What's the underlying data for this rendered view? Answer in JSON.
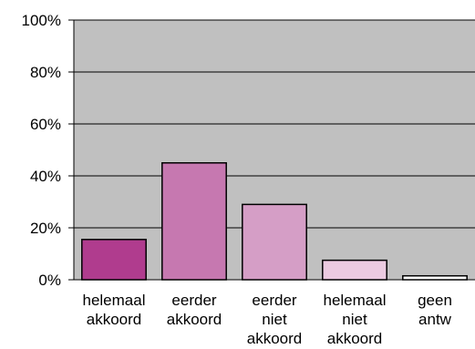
{
  "chart_data": {
    "type": "bar",
    "categories": [
      [
        "helemaal",
        "akkoord"
      ],
      [
        "eerder",
        "akkoord"
      ],
      [
        "eerder",
        "niet",
        "akkoord"
      ],
      [
        "helemaal",
        "niet",
        "akkoord"
      ],
      [
        "geen",
        "antw"
      ]
    ],
    "values": [
      15.5,
      45,
      29,
      7.5,
      1.5
    ],
    "bar_colors": [
      "#b03c8e",
      "#c678b0",
      "#d59ec6",
      "#eccbe1",
      "#ffffff"
    ],
    "y_ticks": [
      "0%",
      "20%",
      "40%",
      "60%",
      "80%",
      "100%"
    ],
    "ylim": [
      0,
      100
    ],
    "grid": true,
    "plot_background": "#c0c0c0",
    "title": "",
    "xlabel": "",
    "ylabel": ""
  }
}
